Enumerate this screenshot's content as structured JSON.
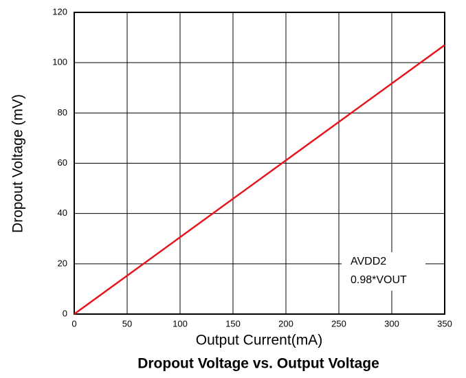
{
  "chart_data": {
    "type": "line",
    "title": "Dropout Voltage vs. Output Voltage",
    "x_label": "Output Current(mA)",
    "y_label": "Dropout Voltage (mV)",
    "annotations": [
      "AVDD2",
      "0.98*VOUT"
    ],
    "x": [
      0,
      350
    ],
    "series": [
      {
        "color": "#e8141b",
        "values": [
          0,
          107
        ]
      }
    ],
    "xlim": [
      0,
      350
    ],
    "xticks": [
      0,
      50,
      100,
      150,
      200,
      250,
      300,
      350
    ],
    "ylim": [
      0,
      120
    ],
    "yticks": [
      0,
      20,
      40,
      60,
      80,
      100,
      120
    ],
    "grid": true
  }
}
